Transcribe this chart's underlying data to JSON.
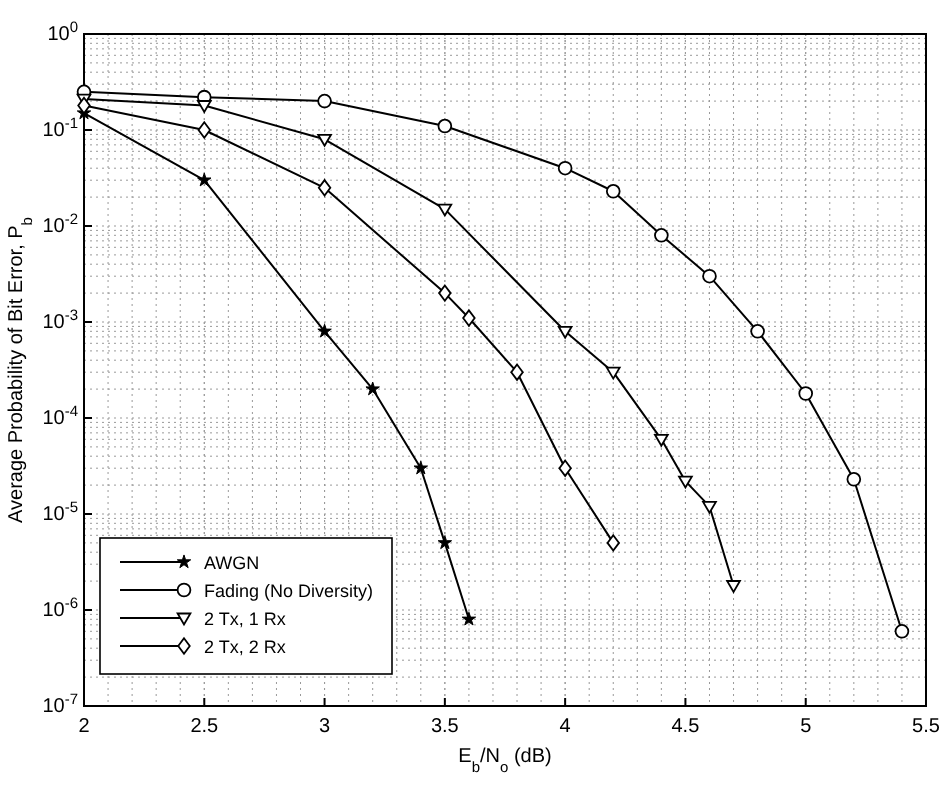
{
  "chart_data": {
    "type": "line",
    "xlabel": "E$_{b}$/N$_{o}$ (dB)",
    "ylabel": "Average Probability of Bit Error, P$_{b}$",
    "log": "y",
    "grid": true,
    "legend": "bottom left",
    "line_style": "solid",
    "xlim": [
      2,
      5.5
    ],
    "xticks": [
      2,
      2.5,
      3,
      3.5,
      4,
      4.5,
      5,
      5.5
    ],
    "ylim": [
      1e-07,
      1
    ],
    "yticks": [
      {
        "value": 1e-07,
        "label": "10$^{-7}$"
      },
      {
        "value": 1e-06,
        "label": "10$^{-6}$"
      },
      {
        "value": 1e-05,
        "label": "10$^{-5}$"
      },
      {
        "value": 0.0001,
        "label": "10$^{-4}$"
      },
      {
        "value": 0.001,
        "label": "10$^{-3}$"
      },
      {
        "value": 0.01,
        "label": "10$^{-2}$"
      },
      {
        "value": 0.1,
        "label": "10$^{-1}$"
      },
      {
        "value": 1,
        "label": "10$^{0}$"
      }
    ],
    "series": [
      {
        "name": "AWGN",
        "color": "#000000",
        "marker": "star",
        "x": [
          2,
          2.5,
          3,
          3.2,
          3.4,
          3.5,
          3.6
        ],
        "values": [
          0.15,
          0.03,
          0.0008,
          0.0002,
          3e-05,
          5e-06,
          8e-07
        ]
      },
      {
        "name": "Fading (No Diversity)",
        "color": "#000000",
        "marker": "circle",
        "x": [
          2,
          2.5,
          3,
          3.5,
          4,
          4.2,
          4.4,
          4.6,
          4.8,
          5,
          5.2,
          5.4
        ],
        "values": [
          0.25,
          0.22,
          0.2,
          0.11,
          0.04,
          0.023,
          0.008,
          0.003,
          0.0008,
          0.00018,
          2.3e-05,
          6e-07
        ]
      },
      {
        "name": "2 Tx, 1 Rx",
        "color": "#000000",
        "marker": "triangle",
        "x": [
          2,
          2.5,
          3,
          3.5,
          4,
          4.2,
          4.4,
          4.5,
          4.6,
          4.7
        ],
        "values": [
          0.21,
          0.18,
          0.08,
          0.015,
          0.0008,
          0.0003,
          6e-05,
          2.2e-05,
          1.2e-05,
          1.8e-06
        ]
      },
      {
        "name": "2 Tx, 2 Rx",
        "color": "#000000",
        "marker": "diamond",
        "x": [
          2,
          2.5,
          3,
          3.5,
          3.6,
          3.8,
          4,
          4.2
        ],
        "values": [
          0.18,
          0.1,
          0.025,
          0.002,
          0.0011,
          0.0003,
          3e-05,
          5e-06
        ]
      }
    ]
  }
}
